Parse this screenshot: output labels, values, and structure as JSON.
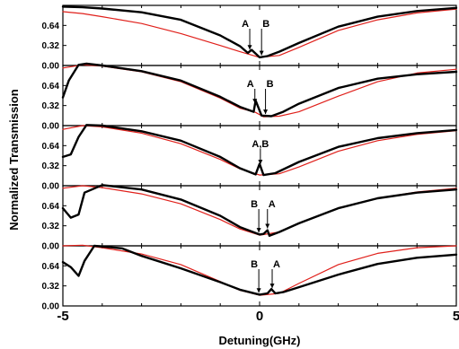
{
  "chart_data": {
    "type": "line",
    "xlabel": "Detuning(GHz)",
    "ylabel": "Normalized Transmission",
    "xlim": [
      -5,
      5
    ],
    "xticks": [
      "-5",
      "0",
      "5"
    ],
    "ylim": [
      0,
      0.96
    ],
    "yticks": [
      "0.00",
      "0.32",
      "0.64"
    ],
    "colors": {
      "experiment": "#000000",
      "theory": "#e0201b"
    },
    "panels": [
      {
        "annotations": [
          {
            "text": "A",
            "x": -0.25
          },
          {
            "text": "B",
            "x": 0.05
          }
        ],
        "series": [
          {
            "values_x": [
              -5,
              -4.5,
              -4,
              -3,
              -2,
              -1,
              -0.5,
              -0.3,
              -0.2,
              0,
              0.2,
              0.5,
              1,
              2,
              3,
              4,
              5
            ],
            "values_y": [
              0.94,
              0.93,
              0.91,
              0.85,
              0.73,
              0.48,
              0.31,
              0.2,
              0.25,
              0.13,
              0.15,
              0.22,
              0.36,
              0.62,
              0.78,
              0.87,
              0.92
            ]
          },
          {
            "values_x": [
              -5,
              -4.5,
              -4,
              -3,
              -2,
              -1,
              -0.5,
              0,
              0.5,
              1,
              2,
              3,
              4,
              5
            ],
            "values_y": [
              0.86,
              0.83,
              0.78,
              0.67,
              0.51,
              0.32,
              0.22,
              0.13,
              0.16,
              0.29,
              0.56,
              0.73,
              0.84,
              0.9
            ]
          }
        ]
      },
      {
        "annotations": [
          {
            "text": "A",
            "x": -0.12
          },
          {
            "text": "B",
            "x": 0.15
          }
        ],
        "series": [
          {
            "values_x": [
              -5,
              -4.85,
              -4.6,
              -4.4,
              -4,
              -3,
              -2,
              -1,
              -0.5,
              -0.15,
              -0.1,
              0.05,
              0.3,
              0.6,
              1,
              2,
              3,
              4,
              5
            ],
            "values_y": [
              0.45,
              0.72,
              0.97,
              0.99,
              0.96,
              0.87,
              0.72,
              0.46,
              0.3,
              0.22,
              0.4,
              0.16,
              0.15,
              0.22,
              0.35,
              0.6,
              0.75,
              0.82,
              0.86
            ]
          },
          {
            "values_x": [
              -5,
              -4.5,
              -4,
              -3,
              -2,
              -1,
              -0.5,
              -0.1,
              0.1,
              0.5,
              1,
              2,
              3,
              4,
              5
            ],
            "values_y": [
              0.92,
              0.97,
              0.95,
              0.86,
              0.7,
              0.44,
              0.28,
              0.21,
              0.14,
              0.15,
              0.22,
              0.47,
              0.7,
              0.84,
              0.9
            ]
          }
        ]
      },
      {
        "annotations": [
          {
            "text": "A,B",
            "x": 0.02
          }
        ],
        "series": [
          {
            "values_x": [
              -5,
              -4.8,
              -4.6,
              -4.4,
              -4,
              -3,
              -2,
              -1,
              -0.5,
              -0.1,
              0,
              0.1,
              0.4,
              1,
              2,
              3,
              4,
              5
            ],
            "values_y": [
              0.46,
              0.5,
              0.78,
              0.97,
              0.96,
              0.87,
              0.72,
              0.46,
              0.28,
              0.18,
              0.35,
              0.17,
              0.2,
              0.38,
              0.62,
              0.76,
              0.84,
              0.89
            ]
          },
          {
            "values_x": [
              -5,
              -4.5,
              -4,
              -3,
              -2,
              -1,
              -0.5,
              0,
              0.5,
              1,
              2,
              3,
              4,
              5
            ],
            "values_y": [
              0.9,
              0.96,
              0.94,
              0.84,
              0.67,
              0.42,
              0.27,
              0.17,
              0.19,
              0.3,
              0.55,
              0.72,
              0.82,
              0.88
            ]
          }
        ]
      },
      {
        "annotations": [
          {
            "text": "B",
            "x": -0.02
          },
          {
            "text": "A",
            "x": 0.2
          }
        ],
        "series": [
          {
            "values_x": [
              -5,
              -4.8,
              -4.6,
              -4.45,
              -4,
              -3,
              -2,
              -1,
              -0.5,
              0,
              0.1,
              0.2,
              0.25,
              0.5,
              1,
              2,
              3,
              4,
              5
            ],
            "values_y": [
              0.6,
              0.45,
              0.5,
              0.85,
              0.97,
              0.9,
              0.74,
              0.48,
              0.3,
              0.18,
              0.19,
              0.25,
              0.16,
              0.22,
              0.36,
              0.6,
              0.76,
              0.85,
              0.9
            ]
          },
          {
            "values_x": [
              -5,
              -4.5,
              -4,
              -3,
              -2,
              -1,
              -0.5,
              0,
              0.5,
              1,
              2,
              3,
              4,
              5
            ],
            "values_y": [
              0.92,
              0.96,
              0.93,
              0.83,
              0.67,
              0.42,
              0.27,
              0.17,
              0.22,
              0.36,
              0.6,
              0.76,
              0.86,
              0.92
            ]
          }
        ]
      },
      {
        "annotations": [
          {
            "text": "B",
            "x": -0.02
          },
          {
            "text": "A",
            "x": 0.32
          }
        ],
        "series": [
          {
            "values_x": [
              -5,
              -4.8,
              -4.6,
              -4.45,
              -4.2,
              -3.5,
              -3,
              -2,
              -1,
              -0.5,
              0,
              0.2,
              0.3,
              0.4,
              0.6,
              1,
              2,
              3,
              4,
              5
            ],
            "values_y": [
              0.7,
              0.62,
              0.48,
              0.72,
              0.96,
              0.92,
              0.8,
              0.6,
              0.38,
              0.26,
              0.18,
              0.2,
              0.27,
              0.2,
              0.22,
              0.3,
              0.5,
              0.67,
              0.77,
              0.82
            ]
          },
          {
            "values_x": [
              -5,
              -4.5,
              -4,
              -3,
              -2,
              -1,
              -0.5,
              0,
              0.5,
              1,
              2,
              3,
              4,
              5
            ],
            "values_y": [
              0.96,
              0.97,
              0.93,
              0.83,
              0.66,
              0.39,
              0.25,
              0.17,
              0.2,
              0.36,
              0.66,
              0.84,
              0.93,
              0.96
            ]
          }
        ]
      }
    ]
  }
}
